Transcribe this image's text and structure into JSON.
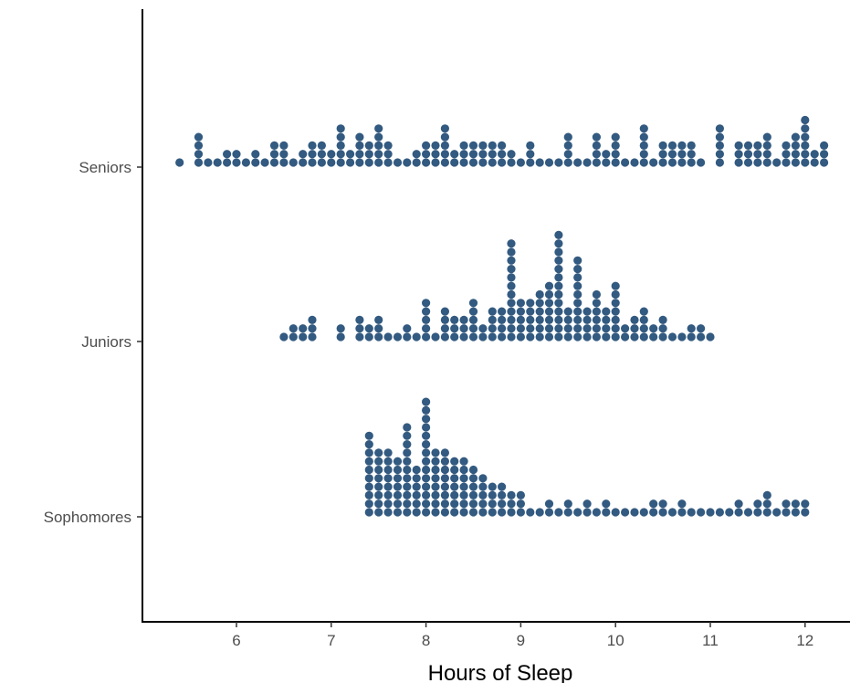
{
  "chart_data": {
    "type": "dotplot",
    "xlabel": "Hours of Sleep",
    "ylabel": "",
    "xlim": [
      5.0,
      12.5
    ],
    "xticks": [
      6,
      7,
      8,
      9,
      10,
      11,
      12
    ],
    "tick_labels": [
      "6",
      "7",
      "8",
      "9",
      "10",
      "11",
      "12"
    ],
    "categories": [
      "Seniors",
      "Juniors",
      "Sophomores"
    ],
    "grid": false,
    "legend": "none",
    "dot_color": "#335a80",
    "groups": [
      {
        "name": "Seniors",
        "bin_width": 0.1,
        "bins": [
          [
            5.4,
            1
          ],
          [
            5.6,
            4
          ],
          [
            5.7,
            1
          ],
          [
            5.8,
            1
          ],
          [
            5.9,
            2
          ],
          [
            6.0,
            2
          ],
          [
            6.1,
            1
          ],
          [
            6.2,
            2
          ],
          [
            6.3,
            1
          ],
          [
            6.4,
            3
          ],
          [
            6.5,
            3
          ],
          [
            6.6,
            1
          ],
          [
            6.7,
            2
          ],
          [
            6.8,
            3
          ],
          [
            6.9,
            3
          ],
          [
            7.0,
            2
          ],
          [
            7.1,
            5
          ],
          [
            7.2,
            2
          ],
          [
            7.3,
            4
          ],
          [
            7.4,
            3
          ],
          [
            7.5,
            5
          ],
          [
            7.6,
            3
          ],
          [
            7.7,
            1
          ],
          [
            7.8,
            1
          ],
          [
            7.9,
            2
          ],
          [
            8.0,
            3
          ],
          [
            8.1,
            3
          ],
          [
            8.2,
            5
          ],
          [
            8.3,
            2
          ],
          [
            8.4,
            3
          ],
          [
            8.5,
            3
          ],
          [
            8.6,
            3
          ],
          [
            8.7,
            3
          ],
          [
            8.8,
            3
          ],
          [
            8.9,
            2
          ],
          [
            9.0,
            1
          ],
          [
            9.1,
            3
          ],
          [
            9.2,
            1
          ],
          [
            9.3,
            1
          ],
          [
            9.4,
            1
          ],
          [
            9.5,
            4
          ],
          [
            9.6,
            1
          ],
          [
            9.7,
            1
          ],
          [
            9.8,
            4
          ],
          [
            9.9,
            2
          ],
          [
            10.0,
            4
          ],
          [
            10.1,
            1
          ],
          [
            10.2,
            1
          ],
          [
            10.3,
            5
          ],
          [
            10.4,
            1
          ],
          [
            10.5,
            3
          ],
          [
            10.6,
            3
          ],
          [
            10.7,
            3
          ],
          [
            10.8,
            3
          ],
          [
            10.9,
            1
          ],
          [
            11.1,
            5
          ],
          [
            11.3,
            3
          ],
          [
            11.4,
            3
          ],
          [
            11.5,
            3
          ],
          [
            11.6,
            4
          ],
          [
            11.7,
            1
          ],
          [
            11.8,
            3
          ],
          [
            11.9,
            4
          ],
          [
            12.0,
            6
          ],
          [
            12.1,
            2
          ],
          [
            12.2,
            3
          ]
        ]
      },
      {
        "name": "Juniors",
        "bin_width": 0.1,
        "bins": [
          [
            6.5,
            1
          ],
          [
            6.6,
            2
          ],
          [
            6.7,
            2
          ],
          [
            6.8,
            3
          ],
          [
            7.1,
            2
          ],
          [
            7.3,
            3
          ],
          [
            7.4,
            2
          ],
          [
            7.5,
            3
          ],
          [
            7.6,
            1
          ],
          [
            7.7,
            1
          ],
          [
            7.8,
            2
          ],
          [
            7.9,
            1
          ],
          [
            8.0,
            5
          ],
          [
            8.1,
            1
          ],
          [
            8.2,
            4
          ],
          [
            8.3,
            3
          ],
          [
            8.4,
            3
          ],
          [
            8.5,
            5
          ],
          [
            8.6,
            2
          ],
          [
            8.7,
            4
          ],
          [
            8.8,
            4
          ],
          [
            8.9,
            12
          ],
          [
            9.0,
            5
          ],
          [
            9.1,
            5
          ],
          [
            9.2,
            6
          ],
          [
            9.3,
            7
          ],
          [
            9.4,
            13
          ],
          [
            9.5,
            4
          ],
          [
            9.6,
            10
          ],
          [
            9.7,
            4
          ],
          [
            9.8,
            6
          ],
          [
            9.9,
            4
          ],
          [
            10.0,
            7
          ],
          [
            10.1,
            2
          ],
          [
            10.2,
            3
          ],
          [
            10.3,
            4
          ],
          [
            10.4,
            2
          ],
          [
            10.5,
            3
          ],
          [
            10.6,
            1
          ],
          [
            10.7,
            1
          ],
          [
            10.8,
            2
          ],
          [
            10.9,
            2
          ],
          [
            11.0,
            1
          ]
        ]
      },
      {
        "name": "Sophomores",
        "bin_width": 0.1,
        "bins": [
          [
            7.4,
            10
          ],
          [
            7.5,
            8
          ],
          [
            7.6,
            8
          ],
          [
            7.7,
            7
          ],
          [
            7.8,
            11
          ],
          [
            7.9,
            6
          ],
          [
            8.0,
            14
          ],
          [
            8.1,
            8
          ],
          [
            8.2,
            8
          ],
          [
            8.3,
            7
          ],
          [
            8.4,
            7
          ],
          [
            8.5,
            6
          ],
          [
            8.6,
            5
          ],
          [
            8.7,
            4
          ],
          [
            8.8,
            4
          ],
          [
            8.9,
            3
          ],
          [
            9.0,
            3
          ],
          [
            9.1,
            1
          ],
          [
            9.2,
            1
          ],
          [
            9.3,
            2
          ],
          [
            9.4,
            1
          ],
          [
            9.5,
            2
          ],
          [
            9.6,
            1
          ],
          [
            9.7,
            2
          ],
          [
            9.8,
            1
          ],
          [
            9.9,
            2
          ],
          [
            10.0,
            1
          ],
          [
            10.1,
            1
          ],
          [
            10.2,
            1
          ],
          [
            10.3,
            1
          ],
          [
            10.4,
            2
          ],
          [
            10.5,
            2
          ],
          [
            10.6,
            1
          ],
          [
            10.7,
            2
          ],
          [
            10.8,
            1
          ],
          [
            10.9,
            1
          ],
          [
            11.0,
            1
          ],
          [
            11.1,
            1
          ],
          [
            11.2,
            1
          ],
          [
            11.3,
            2
          ],
          [
            11.4,
            1
          ],
          [
            11.5,
            2
          ],
          [
            11.6,
            3
          ],
          [
            11.7,
            1
          ],
          [
            11.8,
            2
          ],
          [
            11.9,
            2
          ],
          [
            12.0,
            2
          ]
        ]
      }
    ]
  }
}
